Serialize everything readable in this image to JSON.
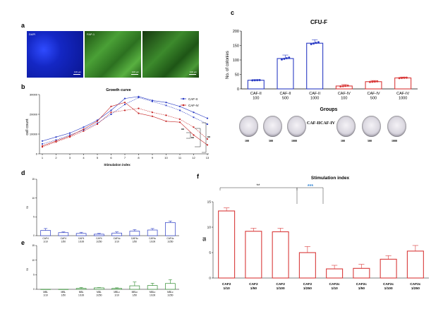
{
  "panels": {
    "a": "a",
    "b": "b",
    "c": "c",
    "d": "d",
    "e": "e",
    "f": "f"
  },
  "panel_a": {
    "images": [
      {
        "tag": "DAPI",
        "color": "#1a2fd6",
        "scale": "100 μm"
      },
      {
        "tag": "FAP-1",
        "color": "#3d9a2b",
        "scale": "100 μm"
      },
      {
        "tag": "",
        "color": "#356f2a",
        "scale": "100 μm"
      }
    ]
  },
  "panel_c_dishes": {
    "group_left": "CAF-II",
    "group_right": "CAF-IV",
    "labels": [
      "100",
      "500",
      "1000",
      "100",
      "500",
      "1000"
    ]
  },
  "chart_data": [
    {
      "id": "b",
      "type": "line",
      "title": "Growth curve",
      "xlabel": "Stimulation index",
      "ylabel": "cell count",
      "x": [
        1,
        2,
        3,
        4,
        5,
        6,
        7,
        8,
        9,
        10,
        11,
        12,
        13
      ],
      "xlim": [
        1,
        13
      ],
      "ylim": [
        0,
        30000
      ],
      "yticks": [
        "0",
        "10000",
        "20000",
        "30000"
      ],
      "series": [
        {
          "name": "CAF-II",
          "color": "#2b3cc4",
          "values": [
            6500,
            8500,
            10500,
            13500,
            17000,
            22000,
            28000,
            29000,
            27000,
            26000,
            24000,
            21000,
            18000
          ]
        },
        {
          "name": "CAF-II",
          "color": "#2b3cc4",
          "values": [
            5000,
            7000,
            9500,
            12000,
            15500,
            20000,
            25000,
            28500,
            26500,
            24500,
            22000,
            18500,
            15000
          ]
        },
        {
          "name": "CAF-IV",
          "color": "#c62828",
          "values": [
            4000,
            6500,
            9000,
            12500,
            16500,
            24000,
            26000,
            20500,
            19000,
            16500,
            16000,
            9500,
            4500
          ]
        },
        {
          "name": "CAF-IV",
          "color": "#c62828",
          "values": [
            3500,
            6000,
            8500,
            11500,
            15000,
            21000,
            22000,
            23000,
            21000,
            19500,
            17500,
            13500,
            7500
          ]
        }
      ],
      "annotations": [
        "**",
        "**",
        "**"
      ]
    },
    {
      "id": "c",
      "type": "bar",
      "title": "CFU-F",
      "xlabel": "Groups",
      "ylabel": "No. of colonies",
      "categories": [
        "CAF-II\n100",
        "CAF-II\n500",
        "CAF-II\n1000",
        "CAF-IV\n100",
        "CAF-IV\n500",
        "CAF-IV\n1000"
      ],
      "values": [
        30,
        105,
        158,
        10,
        25,
        38
      ],
      "errors": [
        2,
        12,
        12,
        5,
        4,
        3
      ],
      "colors": [
        "#2b3cc4",
        "#2b3cc4",
        "#2b3cc4",
        "#d93a3a",
        "#d93a3a",
        "#d93a3a"
      ],
      "ylim": [
        0,
        200
      ],
      "yticks": [
        "0",
        "50",
        "100",
        "150",
        "200"
      ]
    },
    {
      "id": "d",
      "type": "bar",
      "ylabel": "SI",
      "categories": [
        "CAF4\n1/10",
        "CAF4\n1/50",
        "CAF4\n1/100",
        "CAF4\n1/250",
        "CAF4c\n1/10",
        "CAF4c\n1/50",
        "CAF4c\n1/100",
        "CAF4c\n1/250"
      ],
      "values": [
        1.4,
        0.8,
        0.6,
        0.4,
        0.7,
        1.2,
        1.5,
        3.5
      ],
      "errors": [
        0.5,
        0.2,
        0.3,
        0.2,
        0.3,
        0.4,
        0.4,
        0.4
      ],
      "color": "#2b3cc4",
      "ylim": [
        0,
        15
      ],
      "yticks": [
        "0",
        "5",
        "10",
        "15"
      ]
    },
    {
      "id": "e",
      "type": "bar",
      "ylabel": "SI",
      "categories": [
        "MBL\n1/10",
        "MBL\n1/50",
        "MBL\n1/100",
        "MBL\n1/250",
        "MBLc\n1/10",
        "MBLc\n1/50",
        "MBLc\n1/100",
        "MBLc\n1/250"
      ],
      "values": [
        0,
        0,
        0.3,
        0.5,
        0.3,
        1.2,
        1.3,
        2.0
      ],
      "errors": [
        0,
        0,
        0.3,
        0.1,
        0.2,
        1.3,
        0.8,
        1.3
      ],
      "color": "#2e8b2e",
      "ylim": [
        0,
        15
      ],
      "yticks": [
        "0",
        "5",
        "10",
        "15"
      ]
    },
    {
      "id": "f",
      "type": "bar",
      "title": "Stimulation index",
      "ylabel": "SI",
      "categories": [
        "CAF2\n1/10",
        "CAF2\n1/50",
        "CAF2\n1/100",
        "CAF2\n1/250",
        "CAF2c\n1/10",
        "CAF2c\n1/50",
        "CAF2c\n1/100",
        "CAF2c\n1/250"
      ],
      "values": [
        13.2,
        9.2,
        9.1,
        5.0,
        1.8,
        1.9,
        3.7,
        5.3
      ],
      "errors": [
        0.6,
        0.6,
        0.7,
        1.2,
        0.7,
        0.8,
        0.7,
        1.1
      ],
      "color": "#d93a3a",
      "ylim": [
        0,
        15
      ],
      "yticks": [
        "0",
        "5",
        "10",
        "15"
      ],
      "annotations": [
        {
          "text": "**",
          "color": "#333333"
        },
        {
          "text": "***",
          "color": "#3a8ad6"
        }
      ]
    }
  ]
}
